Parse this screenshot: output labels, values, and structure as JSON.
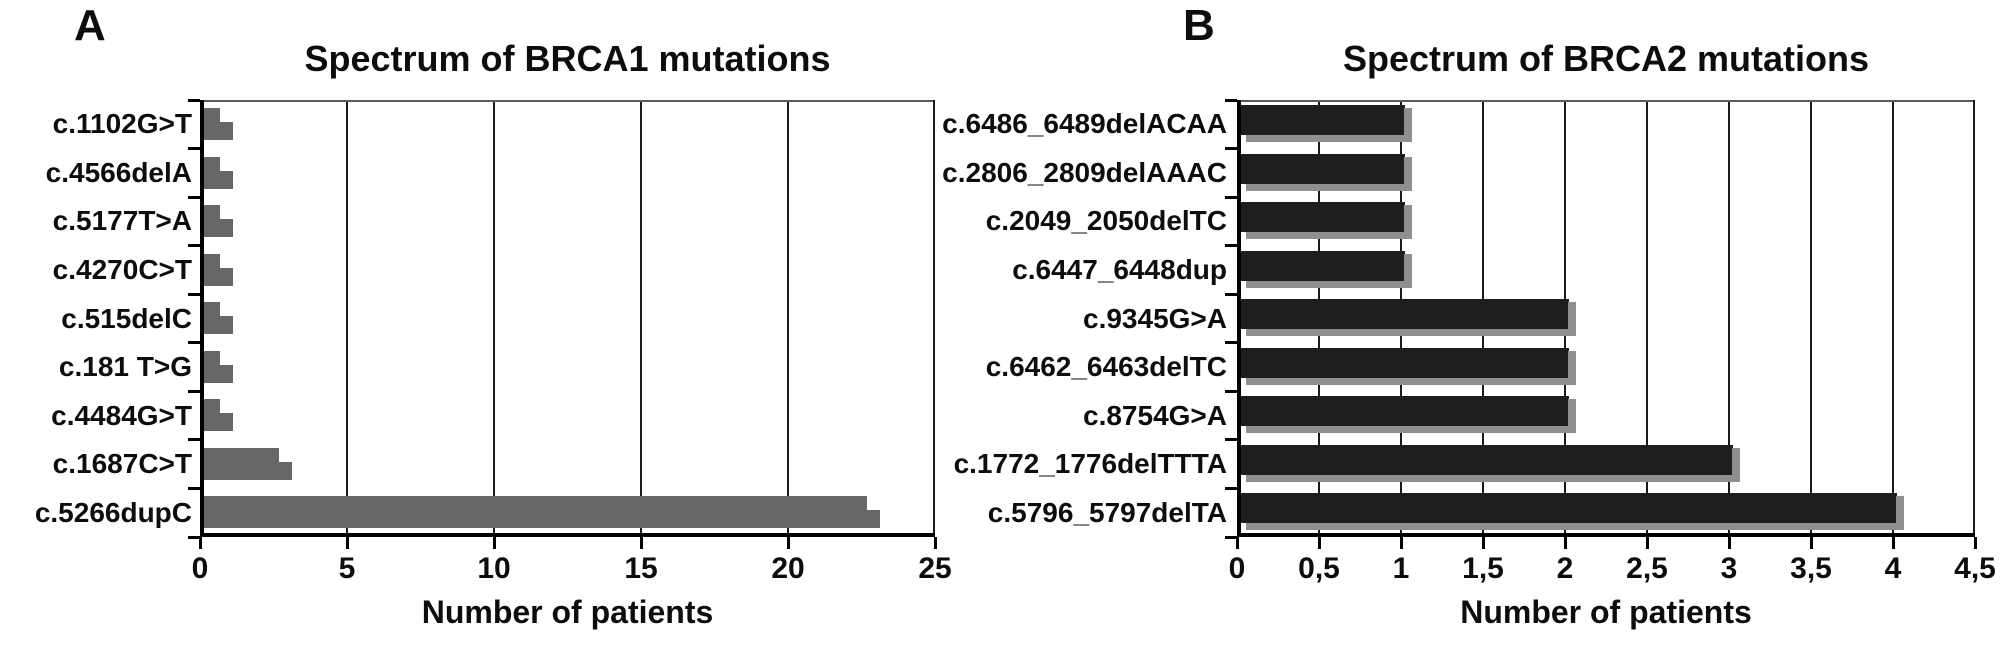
{
  "figure": {
    "background": "#ffffff",
    "description": "Two-panel horizontal bar figure of BRCA mutation spectra"
  },
  "chart_data": [
    {
      "type": "bar",
      "orientation": "horizontal",
      "panel_letter": "A",
      "title": "Spectrum of BRCA1 mutations",
      "xlabel": "Number of patients",
      "categories": [
        "c.1102G>T",
        "c.4566delA",
        "c.5177T>A",
        "c.4270C>T",
        "c.515delC",
        "c.181 T>G",
        "c.4484G>T",
        "c.1687C>T",
        "c.5266dupC"
      ],
      "values": [
        1,
        1,
        1,
        1,
        1,
        1,
        1,
        3,
        23
      ],
      "xlim": [
        0,
        25
      ],
      "xticks": [
        0,
        5,
        10,
        15,
        20,
        25
      ],
      "xtick_labels": [
        "0",
        "5",
        "10",
        "15",
        "20",
        "25"
      ],
      "bar_color": "#676767",
      "grid": true,
      "legend_position": "none"
    },
    {
      "type": "bar",
      "orientation": "horizontal",
      "panel_letter": "B",
      "title": "Spectrum of BRCA2 mutations",
      "xlabel": "Number of patients",
      "categories": [
        "c.6486_6489delACAA",
        "c.2806_2809delAAAC",
        "c.2049_2050delTC",
        "c.6447_6448dup",
        "c.9345G>A",
        "c.6462_6463delTC",
        "c.8754G>A",
        "c.1772_1776delTTTA",
        "c.5796_5797delTA"
      ],
      "values": [
        1,
        1,
        1,
        1,
        2,
        2,
        2,
        3,
        4
      ],
      "xlim": [
        0,
        4.5
      ],
      "xticks": [
        0,
        0.5,
        1,
        1.5,
        2,
        2.5,
        3,
        3.5,
        4,
        4.5
      ],
      "xtick_labels": [
        "0",
        "0,5",
        "1",
        "1,5",
        "2",
        "2,5",
        "3",
        "3,5",
        "4",
        "4,5"
      ],
      "bar_color": "#1e1e1e",
      "bar_shadow_color": "#8f8f8f",
      "grid": true,
      "legend_position": "none"
    }
  ]
}
